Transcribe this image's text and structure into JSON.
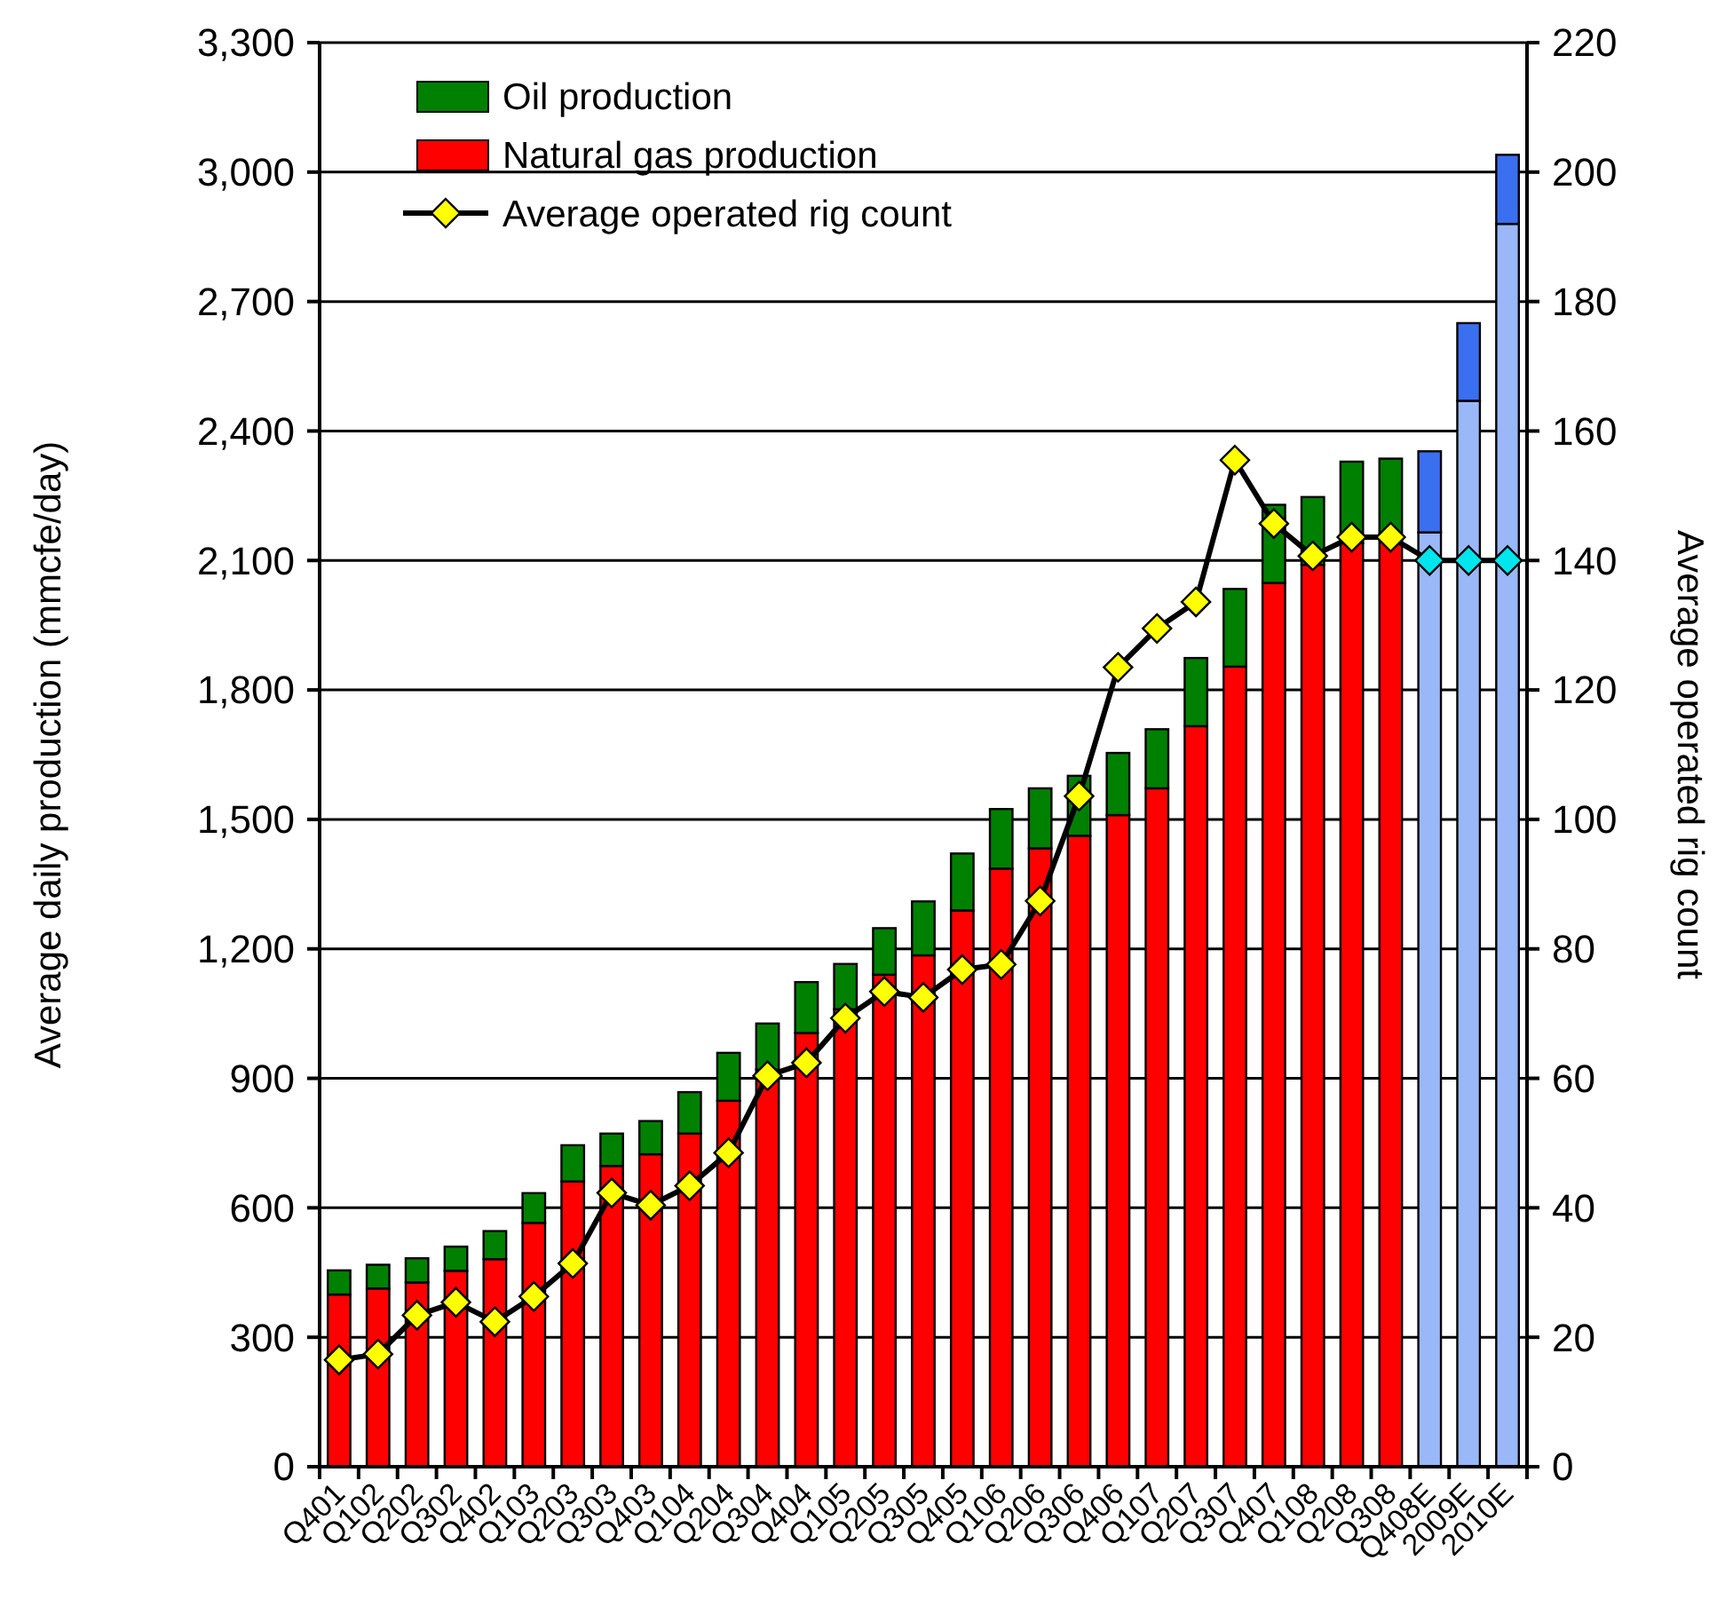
{
  "chart_data": {
    "type": "bar",
    "stacked": true,
    "categories": [
      "Q401",
      "Q102",
      "Q202",
      "Q302",
      "Q402",
      "Q103",
      "Q203",
      "Q303",
      "Q403",
      "Q104",
      "Q204",
      "Q304",
      "Q404",
      "Q105",
      "Q205",
      "Q305",
      "Q405",
      "Q106",
      "Q206",
      "Q306",
      "Q406",
      "Q107",
      "Q207",
      "Q307",
      "Q407",
      "Q108",
      "Q208",
      "Q308",
      "Q408E",
      "2009E",
      "2010E"
    ],
    "series": [
      {
        "name": "Natural gas production",
        "color": "#ff0000",
        "colors": [
          "#ff0000",
          "#ff0000",
          "#ff0000",
          "#ff0000",
          "#ff0000",
          "#ff0000",
          "#ff0000",
          "#ff0000",
          "#ff0000",
          "#ff0000",
          "#ff0000",
          "#ff0000",
          "#ff0000",
          "#ff0000",
          "#ff0000",
          "#ff0000",
          "#ff0000",
          "#ff0000",
          "#ff0000",
          "#ff0000",
          "#ff0000",
          "#ff0000",
          "#ff0000",
          "#ff0000",
          "#ff0000",
          "#ff0000",
          "#ff0000",
          "#ff0000",
          "#9ab8f7",
          "#9ab8f7",
          "#9ab8f7"
        ],
        "values": [
          399,
          413,
          427,
          454,
          481,
          565,
          661,
          697,
          724,
          772,
          848,
          920,
          1005,
          1060,
          1140,
          1185,
          1289,
          1386,
          1433,
          1462,
          1510,
          1572,
          1716,
          1854,
          2048,
          2090,
          2140,
          2150,
          2165,
          2470,
          2880
        ]
      },
      {
        "name": "Oil production",
        "color": "#008000",
        "colors": [
          "#008000",
          "#008000",
          "#008000",
          "#008000",
          "#008000",
          "#008000",
          "#008000",
          "#008000",
          "#008000",
          "#008000",
          "#008000",
          "#008000",
          "#008000",
          "#008000",
          "#008000",
          "#008000",
          "#008000",
          "#008000",
          "#008000",
          "#008000",
          "#008000",
          "#008000",
          "#008000",
          "#008000",
          "#008000",
          "#008000",
          "#008000",
          "#008000",
          "#3a6ff0",
          "#3a6ff0",
          "#3a6ff0"
        ],
        "values": [
          56,
          55,
          56,
          56,
          65,
          69,
          84,
          75,
          77,
          96,
          111,
          107,
          118,
          105,
          108,
          125,
          132,
          138,
          139,
          139,
          144,
          137,
          158,
          180,
          181,
          157,
          189,
          186,
          188,
          180,
          160
        ]
      },
      {
        "name": "Average operated rig count",
        "type": "line",
        "axis": "y2",
        "color": "#000000",
        "marker": "diamond",
        "colors": [
          "#ffff00",
          "#ffff00",
          "#ffff00",
          "#ffff00",
          "#ffff00",
          "#ffff00",
          "#ffff00",
          "#ffff00",
          "#ffff00",
          "#ffff00",
          "#ffff00",
          "#ffff00",
          "#ffff00",
          "#ffff00",
          "#ffff00",
          "#ffff00",
          "#ffff00",
          "#ffff00",
          "#ffff00",
          "#ffff00",
          "#ffff00",
          "#ffff00",
          "#ffff00",
          "#ffff00",
          "#ffff00",
          "#ffff00",
          "#ffff00",
          "#ffff00",
          "#00e5ee",
          "#00e5ee",
          "#00e5ee"
        ],
        "values": [
          16.5,
          17.4,
          23.4,
          25.4,
          22.4,
          26.3,
          31.4,
          42.3,
          40.4,
          43.4,
          48.5,
          60.4,
          62.4,
          69.3,
          73.4,
          72.5,
          76.8,
          77.6,
          87.4,
          103.6,
          123.5,
          129.5,
          133.6,
          155.5,
          145.7,
          140.7,
          143.6,
          143.6,
          140,
          140,
          140
        ]
      }
    ],
    "ylabel": "Average daily production (mmcfe/day)",
    "y2label": "Average operated rig count",
    "ylim": [
      0,
      3300
    ],
    "yticks": [
      {
        "value": 0,
        "label": "0"
      },
      {
        "value": 300,
        "label": "300"
      },
      {
        "value": 600,
        "label": "600"
      },
      {
        "value": 900,
        "label": "900"
      },
      {
        "value": 1200,
        "label": "1,200"
      },
      {
        "value": 1500,
        "label": "1,500"
      },
      {
        "value": 1800,
        "label": "1,800"
      },
      {
        "value": 2100,
        "label": "2,100"
      },
      {
        "value": 2400,
        "label": "2,400"
      },
      {
        "value": 2700,
        "label": "2,700"
      },
      {
        "value": 3000,
        "label": "3,000"
      },
      {
        "value": 3300,
        "label": "3,300"
      }
    ],
    "y2lim": [
      0,
      220
    ],
    "y2ticks": [
      0,
      20,
      40,
      60,
      80,
      100,
      120,
      140,
      160,
      180,
      200,
      220
    ],
    "grid": "y",
    "legend": "top left"
  }
}
